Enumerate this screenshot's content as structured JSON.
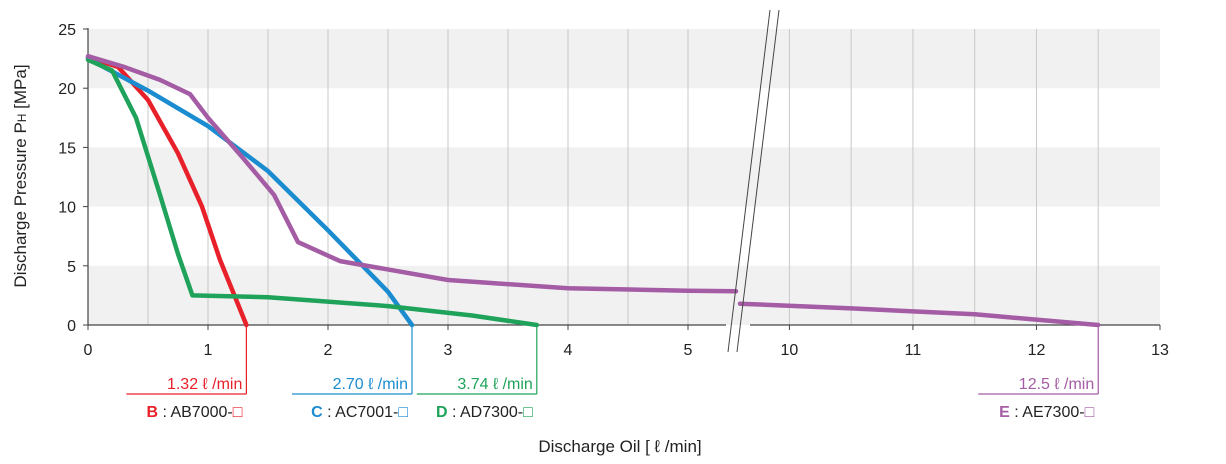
{
  "chart_data": {
    "type": "line",
    "xlabel": "Discharge Oil [ ℓ /min]",
    "ylabel": "Discharge Pressure P",
    "ylabel_sub": "H",
    "ylabel_unit": " [MPa]",
    "x_axis_break": {
      "from": 5.4,
      "to": 9.6
    },
    "xlim": [
      0,
      13
    ],
    "ylim": [
      0,
      25
    ],
    "x_ticks": [
      0,
      1,
      2,
      3,
      4,
      5,
      10,
      11,
      12,
      13
    ],
    "y_ticks": [
      0,
      5,
      10,
      15,
      20,
      25
    ],
    "grid": "vertical every 0.5 ℓ/min, alternating horizontal bands",
    "series": [
      {
        "id": "B",
        "model": "AB7000-□",
        "flow_label": "1.32 ℓ /min",
        "max_flow": 1.32,
        "color": "#e8202a",
        "points": [
          [
            0,
            22.6
          ],
          [
            0.25,
            21.8
          ],
          [
            0.5,
            19.0
          ],
          [
            0.75,
            14.5
          ],
          [
            0.95,
            10.0
          ],
          [
            1.1,
            5.5
          ],
          [
            1.32,
            0
          ]
        ]
      },
      {
        "id": "C",
        "model": "AC7001-□",
        "flow_label": "2.70 ℓ /min",
        "max_flow": 2.7,
        "color": "#1b8ccf",
        "points": [
          [
            0,
            22.5
          ],
          [
            0.5,
            19.8
          ],
          [
            1.0,
            16.8
          ],
          [
            1.5,
            13.0
          ],
          [
            2.0,
            8.0
          ],
          [
            2.5,
            2.8
          ],
          [
            2.7,
            0
          ]
        ]
      },
      {
        "id": "D",
        "model": "AD7300-□",
        "flow_label": "3.74 ℓ /min",
        "max_flow": 3.74,
        "color": "#1fa35a",
        "points": [
          [
            0,
            22.4
          ],
          [
            0.2,
            21.5
          ],
          [
            0.4,
            17.5
          ],
          [
            0.6,
            11.0
          ],
          [
            0.75,
            6.0
          ],
          [
            0.87,
            2.5
          ],
          [
            1.5,
            2.35
          ],
          [
            2.5,
            1.6
          ],
          [
            3.2,
            0.8
          ],
          [
            3.74,
            0
          ]
        ]
      },
      {
        "id": "E",
        "model": "AE7300-□",
        "flow_label": "12.5 ℓ /min",
        "max_flow": 12.5,
        "color": "#a45ca4",
        "points": [
          [
            0,
            22.7
          ],
          [
            0.3,
            21.8
          ],
          [
            0.6,
            20.7
          ],
          [
            0.85,
            19.5
          ],
          [
            1.0,
            17.5
          ],
          [
            1.3,
            14.0
          ],
          [
            1.55,
            11.0
          ],
          [
            1.75,
            7.0
          ],
          [
            2.1,
            5.4
          ],
          [
            3.0,
            3.8
          ],
          [
            4.0,
            3.1
          ],
          [
            5.0,
            2.9
          ],
          [
            5.4,
            2.85
          ],
          [
            9.6,
            1.8
          ],
          [
            10.5,
            1.4
          ],
          [
            11.5,
            0.9
          ],
          [
            12.5,
            0
          ]
        ]
      }
    ]
  }
}
